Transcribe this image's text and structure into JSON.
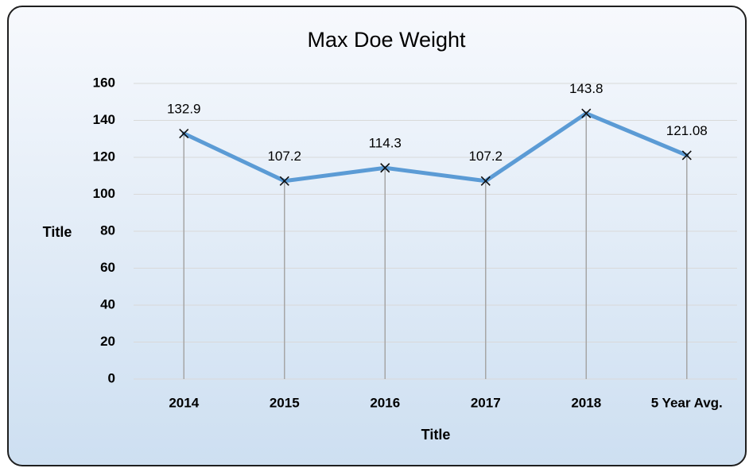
{
  "chart_data": {
    "type": "line",
    "title": "Max Doe Weight",
    "x_label": "Title",
    "y_label": "Title",
    "categories": [
      "2014",
      "2015",
      "2016",
      "2017",
      "2018",
      "5 Year Avg."
    ],
    "values": [
      132.9,
      107.2,
      114.3,
      107.2,
      143.8,
      121.08
    ],
    "color": "#5b9bd5",
    "drop_lines": true,
    "marker": "x",
    "ylim": [
      0,
      160
    ],
    "yticks": [
      0,
      20,
      40,
      60,
      80,
      100,
      120,
      140,
      160
    ],
    "grid": true
  }
}
